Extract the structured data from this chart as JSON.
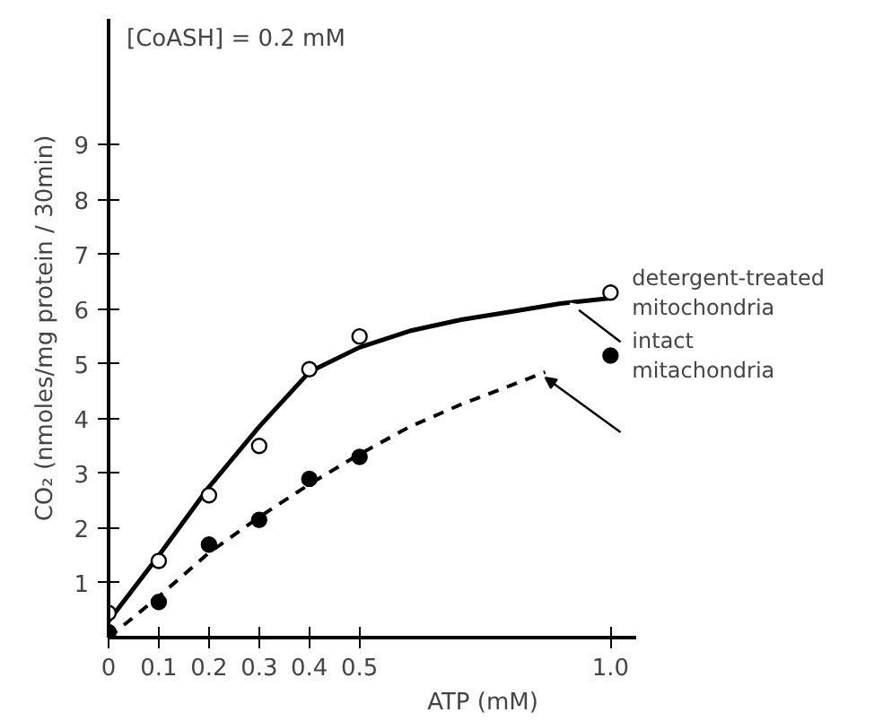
{
  "chart_data": {
    "type": "scatter",
    "xlabel": "ATP (mM)",
    "ylabel": "CO₂ (nmoles/mg protein / 30min)",
    "annotations": [
      "[CoASH] = 0.2 mM"
    ],
    "xlim": [
      0,
      1.05
    ],
    "ylim": [
      0,
      11.3
    ],
    "xticks": [
      0,
      0.1,
      0.2,
      0.3,
      0.4,
      0.5,
      {
        "value": 1.0,
        "label": "1.0"
      }
    ],
    "yticks": [
      1,
      2,
      3,
      4,
      5,
      6,
      7,
      8,
      9
    ],
    "grid": false,
    "legend": false,
    "series": [
      {
        "name": "detergent-treated mitochondria",
        "marker": "circle",
        "color": "#ffffff",
        "x": [
          0,
          0.1,
          0.2,
          0.3,
          0.4,
          0.5,
          1.0
        ],
        "values": [
          0.45,
          1.4,
          2.6,
          3.5,
          4.9,
          5.5,
          6.3
        ]
      },
      {
        "name": "intact mitachondria",
        "marker": "circle",
        "color": "#000000",
        "x": [
          0,
          0.1,
          0.2,
          0.3,
          0.4,
          0.5,
          1.0
        ],
        "values": [
          0.1,
          0.65,
          1.7,
          2.15,
          2.9,
          3.3,
          5.15
        ]
      },
      {
        "type": "line",
        "line_style": "solid",
        "color": "#000000",
        "x": [
          0,
          0.1,
          0.2,
          0.3,
          0.4,
          0.5,
          0.6,
          0.7,
          0.8,
          0.9,
          1.0
        ],
        "values": [
          0.3,
          1.5,
          2.75,
          3.85,
          4.85,
          5.3,
          5.6,
          5.8,
          5.95,
          6.1,
          6.2
        ]
      },
      {
        "type": "line",
        "line_style": "dashed",
        "color": "#000000",
        "x": [
          0,
          0.1,
          0.2,
          0.3,
          0.4,
          0.5,
          0.6,
          0.7,
          0.8,
          0.87
        ],
        "values": [
          0,
          0.75,
          1.55,
          2.2,
          2.8,
          3.35,
          3.85,
          4.25,
          4.6,
          4.85
        ]
      }
    ]
  }
}
